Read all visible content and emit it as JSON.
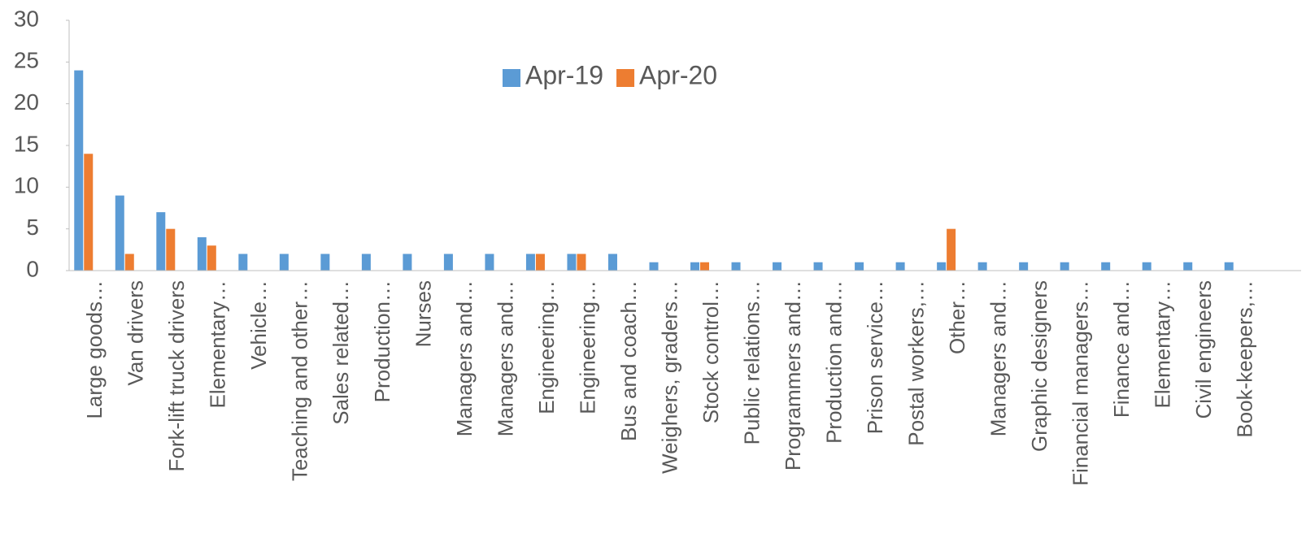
{
  "chart_data": {
    "type": "bar",
    "categories": [
      "Large goods…",
      "Van drivers",
      "Fork-lift truck drivers",
      "Elementary…",
      "Vehicle…",
      "Teaching and other…",
      "Sales related…",
      "Production…",
      "Nurses",
      "Managers and…",
      "Managers and…",
      "Engineering…",
      "Engineering…",
      "Bus and coach…",
      "Weighers, graders…",
      "Stock control…",
      "Public relations…",
      "Programmers and…",
      "Production and…",
      "Prison service…",
      "Postal workers,…",
      "Other…",
      "Managers and…",
      "Graphic designers",
      "Financial managers…",
      "Finance and…",
      "Elementary…",
      "Civil engineers",
      "Book-keepers,…"
    ],
    "series": [
      {
        "name": "Apr-19",
        "color": "#5b9bd5",
        "values": [
          24,
          9,
          7,
          4,
          2,
          2,
          2,
          2,
          2,
          2,
          2,
          2,
          2,
          2,
          1,
          1,
          1,
          1,
          1,
          1,
          1,
          1,
          1,
          1,
          1,
          1,
          1,
          1,
          1
        ]
      },
      {
        "name": "Apr-20",
        "color": "#ed7d31",
        "values": [
          14,
          2,
          5,
          3,
          0,
          0,
          0,
          0,
          0,
          0,
          0,
          2,
          2,
          0,
          0,
          1,
          0,
          0,
          0,
          0,
          0,
          5,
          0,
          0,
          0,
          0,
          0,
          0,
          0
        ]
      }
    ],
    "ylim": [
      0,
      30
    ],
    "yticks": [
      0,
      5,
      10,
      15,
      20,
      25,
      30
    ],
    "grid": false
  }
}
